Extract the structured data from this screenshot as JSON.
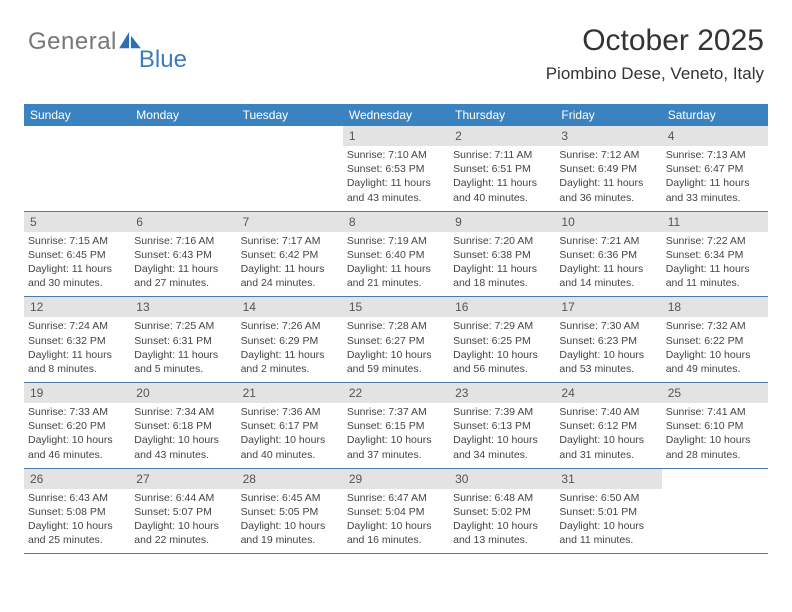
{
  "brand": {
    "part1": "General",
    "part2": "Blue"
  },
  "header": {
    "month_title": "October 2025",
    "location": "Piombino Dese, Veneto, Italy"
  },
  "style": {
    "header_bg": "#3b83c0",
    "rule_color": "#326ba8",
    "daybar_bg": "#e3e3e3"
  },
  "dow": [
    "Sunday",
    "Monday",
    "Tuesday",
    "Wednesday",
    "Thursday",
    "Friday",
    "Saturday"
  ],
  "weeks": [
    [
      {
        "n": "",
        "sr": "",
        "ss": "",
        "dl": ""
      },
      {
        "n": "",
        "sr": "",
        "ss": "",
        "dl": ""
      },
      {
        "n": "",
        "sr": "",
        "ss": "",
        "dl": ""
      },
      {
        "n": "1",
        "sr": "Sunrise: 7:10 AM",
        "ss": "Sunset: 6:53 PM",
        "dl": "Daylight: 11 hours and 43 minutes."
      },
      {
        "n": "2",
        "sr": "Sunrise: 7:11 AM",
        "ss": "Sunset: 6:51 PM",
        "dl": "Daylight: 11 hours and 40 minutes."
      },
      {
        "n": "3",
        "sr": "Sunrise: 7:12 AM",
        "ss": "Sunset: 6:49 PM",
        "dl": "Daylight: 11 hours and 36 minutes."
      },
      {
        "n": "4",
        "sr": "Sunrise: 7:13 AM",
        "ss": "Sunset: 6:47 PM",
        "dl": "Daylight: 11 hours and 33 minutes."
      }
    ],
    [
      {
        "n": "5",
        "sr": "Sunrise: 7:15 AM",
        "ss": "Sunset: 6:45 PM",
        "dl": "Daylight: 11 hours and 30 minutes."
      },
      {
        "n": "6",
        "sr": "Sunrise: 7:16 AM",
        "ss": "Sunset: 6:43 PM",
        "dl": "Daylight: 11 hours and 27 minutes."
      },
      {
        "n": "7",
        "sr": "Sunrise: 7:17 AM",
        "ss": "Sunset: 6:42 PM",
        "dl": "Daylight: 11 hours and 24 minutes."
      },
      {
        "n": "8",
        "sr": "Sunrise: 7:19 AM",
        "ss": "Sunset: 6:40 PM",
        "dl": "Daylight: 11 hours and 21 minutes."
      },
      {
        "n": "9",
        "sr": "Sunrise: 7:20 AM",
        "ss": "Sunset: 6:38 PM",
        "dl": "Daylight: 11 hours and 18 minutes."
      },
      {
        "n": "10",
        "sr": "Sunrise: 7:21 AM",
        "ss": "Sunset: 6:36 PM",
        "dl": "Daylight: 11 hours and 14 minutes."
      },
      {
        "n": "11",
        "sr": "Sunrise: 7:22 AM",
        "ss": "Sunset: 6:34 PM",
        "dl": "Daylight: 11 hours and 11 minutes."
      }
    ],
    [
      {
        "n": "12",
        "sr": "Sunrise: 7:24 AM",
        "ss": "Sunset: 6:32 PM",
        "dl": "Daylight: 11 hours and 8 minutes."
      },
      {
        "n": "13",
        "sr": "Sunrise: 7:25 AM",
        "ss": "Sunset: 6:31 PM",
        "dl": "Daylight: 11 hours and 5 minutes."
      },
      {
        "n": "14",
        "sr": "Sunrise: 7:26 AM",
        "ss": "Sunset: 6:29 PM",
        "dl": "Daylight: 11 hours and 2 minutes."
      },
      {
        "n": "15",
        "sr": "Sunrise: 7:28 AM",
        "ss": "Sunset: 6:27 PM",
        "dl": "Daylight: 10 hours and 59 minutes."
      },
      {
        "n": "16",
        "sr": "Sunrise: 7:29 AM",
        "ss": "Sunset: 6:25 PM",
        "dl": "Daylight: 10 hours and 56 minutes."
      },
      {
        "n": "17",
        "sr": "Sunrise: 7:30 AM",
        "ss": "Sunset: 6:23 PM",
        "dl": "Daylight: 10 hours and 53 minutes."
      },
      {
        "n": "18",
        "sr": "Sunrise: 7:32 AM",
        "ss": "Sunset: 6:22 PM",
        "dl": "Daylight: 10 hours and 49 minutes."
      }
    ],
    [
      {
        "n": "19",
        "sr": "Sunrise: 7:33 AM",
        "ss": "Sunset: 6:20 PM",
        "dl": "Daylight: 10 hours and 46 minutes."
      },
      {
        "n": "20",
        "sr": "Sunrise: 7:34 AM",
        "ss": "Sunset: 6:18 PM",
        "dl": "Daylight: 10 hours and 43 minutes."
      },
      {
        "n": "21",
        "sr": "Sunrise: 7:36 AM",
        "ss": "Sunset: 6:17 PM",
        "dl": "Daylight: 10 hours and 40 minutes."
      },
      {
        "n": "22",
        "sr": "Sunrise: 7:37 AM",
        "ss": "Sunset: 6:15 PM",
        "dl": "Daylight: 10 hours and 37 minutes."
      },
      {
        "n": "23",
        "sr": "Sunrise: 7:39 AM",
        "ss": "Sunset: 6:13 PM",
        "dl": "Daylight: 10 hours and 34 minutes."
      },
      {
        "n": "24",
        "sr": "Sunrise: 7:40 AM",
        "ss": "Sunset: 6:12 PM",
        "dl": "Daylight: 10 hours and 31 minutes."
      },
      {
        "n": "25",
        "sr": "Sunrise: 7:41 AM",
        "ss": "Sunset: 6:10 PM",
        "dl": "Daylight: 10 hours and 28 minutes."
      }
    ],
    [
      {
        "n": "26",
        "sr": "Sunrise: 6:43 AM",
        "ss": "Sunset: 5:08 PM",
        "dl": "Daylight: 10 hours and 25 minutes."
      },
      {
        "n": "27",
        "sr": "Sunrise: 6:44 AM",
        "ss": "Sunset: 5:07 PM",
        "dl": "Daylight: 10 hours and 22 minutes."
      },
      {
        "n": "28",
        "sr": "Sunrise: 6:45 AM",
        "ss": "Sunset: 5:05 PM",
        "dl": "Daylight: 10 hours and 19 minutes."
      },
      {
        "n": "29",
        "sr": "Sunrise: 6:47 AM",
        "ss": "Sunset: 5:04 PM",
        "dl": "Daylight: 10 hours and 16 minutes."
      },
      {
        "n": "30",
        "sr": "Sunrise: 6:48 AM",
        "ss": "Sunset: 5:02 PM",
        "dl": "Daylight: 10 hours and 13 minutes."
      },
      {
        "n": "31",
        "sr": "Sunrise: 6:50 AM",
        "ss": "Sunset: 5:01 PM",
        "dl": "Daylight: 10 hours and 11 minutes."
      },
      {
        "n": "",
        "sr": "",
        "ss": "",
        "dl": ""
      }
    ]
  ]
}
